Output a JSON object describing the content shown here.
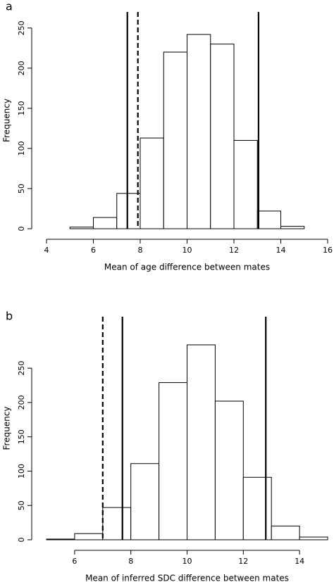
{
  "chart_data": [
    {
      "type": "histogram",
      "title": "a",
      "xlabel": "Mean of age difference between mates",
      "ylabel": "Frequency",
      "bins": [
        5,
        6,
        7,
        8,
        9,
        10,
        11,
        12,
        13,
        14,
        15
      ],
      "counts": [
        2,
        14,
        44,
        113,
        220,
        242,
        230,
        110,
        22,
        3
      ],
      "xlim": [
        4,
        16
      ],
      "xticks": [
        4,
        6,
        8,
        10,
        12,
        14,
        16
      ],
      "ylim": [
        0,
        270
      ],
      "yticks": [
        0,
        50,
        100,
        150,
        200,
        250
      ],
      "vlines_solid": [
        7.45,
        13.05
      ],
      "vlines_dashed": [
        7.9
      ],
      "color": "#ffffff"
    },
    {
      "type": "histogram",
      "title": "b",
      "xlabel": "Mean of inferred SDC difference between mates",
      "ylabel": "Frequency",
      "bins": [
        5,
        6,
        7,
        8,
        9,
        10,
        11,
        12,
        13,
        14,
        15
      ],
      "counts": [
        1,
        9,
        47,
        111,
        229,
        284,
        202,
        91,
        20,
        4
      ],
      "xlim": [
        5,
        15
      ],
      "xticks": [
        6,
        8,
        10,
        12,
        14
      ],
      "ylim": [
        0,
        325
      ],
      "yticks": [
        0,
        50,
        100,
        150,
        200,
        250
      ],
      "vlines_solid": [
        7.7,
        12.8
      ],
      "vlines_dashed": [
        7.0
      ],
      "color": "#ffffff"
    }
  ]
}
